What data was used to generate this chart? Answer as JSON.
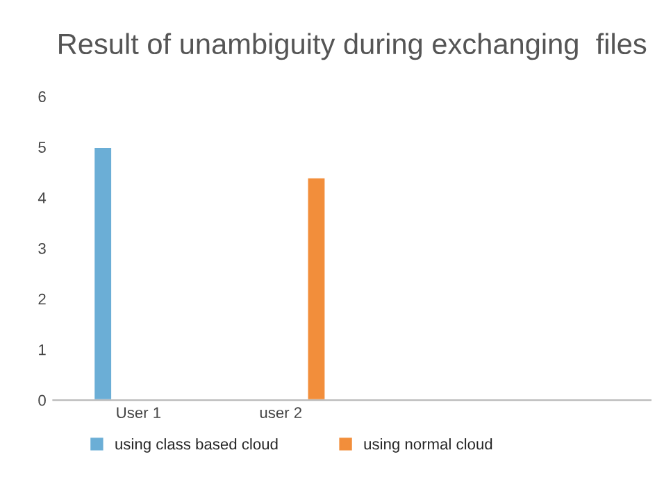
{
  "chart_data": {
    "type": "bar",
    "title": "Result of unambiguity during exchanging  files",
    "categories": [
      "User 1",
      "user 2",
      null,
      null
    ],
    "series": [
      {
        "name": "using class based cloud",
        "color": "#6baed6",
        "values": [
          5,
          null,
          null,
          null
        ]
      },
      {
        "name": "using normal cloud",
        "color": "#f28e3b",
        "values": [
          null,
          4.4,
          null,
          null
        ]
      }
    ],
    "ylim": [
      0,
      6
    ],
    "yticks": [
      0,
      1,
      2,
      3,
      4,
      5,
      6
    ],
    "grid": false,
    "legend": "bottom"
  }
}
